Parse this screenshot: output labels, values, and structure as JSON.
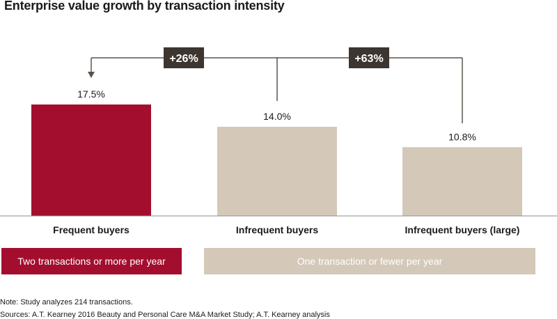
{
  "title": "Enterprise value growth by transaction intensity",
  "chart_data": {
    "type": "bar",
    "title": "Enterprise value growth by transaction intensity",
    "categories": [
      "Frequent buyers",
      "Infrequent buyers",
      "Infrequent buyers (large)"
    ],
    "values": [
      17.5,
      14.0,
      10.8
    ],
    "value_labels": [
      "17.5%",
      "14.0%",
      "10.8%"
    ],
    "ylim": [
      0,
      20
    ],
    "grid": false,
    "xlabel": "",
    "ylabel": "",
    "bar_colors": [
      "#a30e2f",
      "#d4c8b8",
      "#d4c8b8"
    ],
    "annotations": [
      {
        "label": "+26%",
        "from": "Infrequent buyers",
        "to": "Frequent buyers"
      },
      {
        "label": "+63%",
        "from": "Infrequent buyers (large)",
        "to": "Frequent buyers"
      }
    ]
  },
  "legend": {
    "primary": "Two transactions or more per year",
    "secondary": "One transaction or fewer per year"
  },
  "notes": {
    "note": "Note: Study analyzes 214 transactions.",
    "sources": "Sources: A.T. Kearney 2016 Beauty and Personal Care M&A Market Study; A.T. Kearney analysis"
  },
  "colors": {
    "primary": "#a30e2f",
    "secondary": "#d4c8b8",
    "annotation_box": "#3d3530",
    "connector": "#5a524c"
  }
}
